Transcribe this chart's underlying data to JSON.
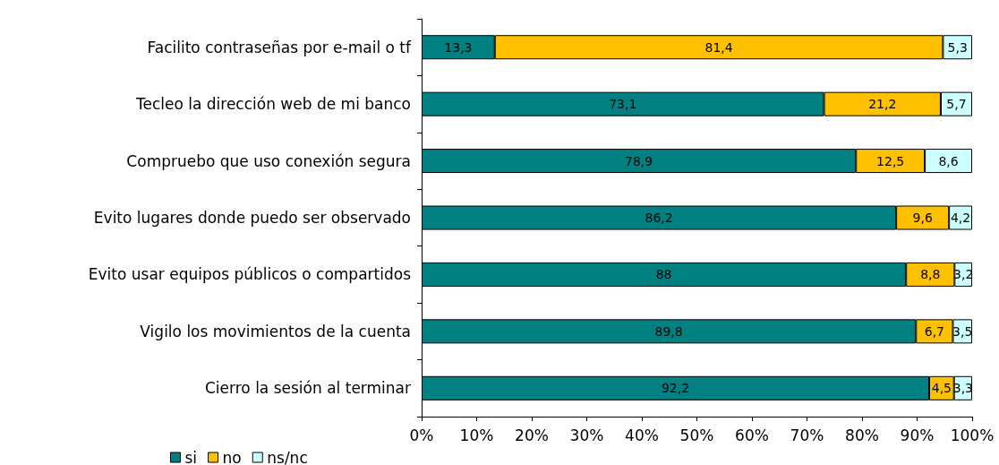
{
  "chart_data": {
    "type": "bar",
    "orientation": "horizontal",
    "stacked": true,
    "legend": "bottom left",
    "grid": false,
    "categories": [
      "Facilito contraseñas por e-mail o tf",
      "Tecleo la dirección web de mi banco",
      "Compruebo que uso conexión segura",
      "Evito lugares donde puedo ser observado",
      "Evito usar equipos públicos o compartidos",
      "Vigilo los movimientos de la cuenta",
      "Cierro la sesión al terminar"
    ],
    "series": [
      {
        "name": "si",
        "color": "#008080",
        "values": [
          13.3,
          73.1,
          78.9,
          86.2,
          88,
          89.8,
          92.2
        ],
        "value_labels": [
          "13,3",
          "73,1",
          "78,9",
          "86,2",
          "88",
          "89,8",
          "92,2"
        ]
      },
      {
        "name": "no",
        "color": "#ffc000",
        "values": [
          81.4,
          21.2,
          12.5,
          9.6,
          8.8,
          6.7,
          4.5
        ],
        "value_labels": [
          "81,4",
          "21,2",
          "12,5",
          "9,6",
          "8,8",
          "6,7",
          "4,5"
        ]
      },
      {
        "name": "ns/nc",
        "color": "#ccffff",
        "values": [
          5.3,
          5.7,
          8.6,
          4.2,
          3.2,
          3.5,
          3.3
        ],
        "value_labels": [
          "5,3",
          "5,7",
          "8,6",
          "4,2",
          "3,2",
          "3,5",
          "3,3"
        ]
      }
    ],
    "xlim": [
      0,
      100
    ],
    "xticks": [
      {
        "value": 0,
        "label": "0%"
      },
      {
        "value": 10,
        "label": "10%"
      },
      {
        "value": 20,
        "label": "20%"
      },
      {
        "value": 30,
        "label": "30%"
      },
      {
        "value": 40,
        "label": "40%"
      },
      {
        "value": 50,
        "label": "50%"
      },
      {
        "value": 60,
        "label": "60%"
      },
      {
        "value": 70,
        "label": "70%"
      },
      {
        "value": 80,
        "label": "80%"
      },
      {
        "value": 90,
        "label": "90%"
      },
      {
        "value": 100,
        "label": "100%"
      }
    ]
  }
}
